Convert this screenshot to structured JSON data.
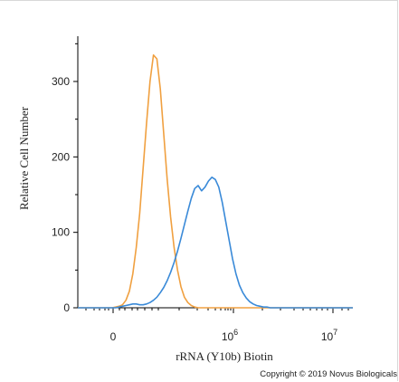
{
  "chart_data": {
    "type": "line",
    "xlabel": "rRNA (Y10b) Biotin",
    "ylabel": "Relative Cell Number",
    "ylim": [
      0,
      360
    ],
    "y_ticks": [
      0,
      100,
      200,
      300
    ],
    "y_tick_labels": [
      "0",
      "100",
      "200",
      "300"
    ],
    "x_scale": "biexponential",
    "x_ticks": [
      {
        "label": "0",
        "sup": ""
      },
      {
        "label": "10",
        "sup": "6"
      },
      {
        "label": "10",
        "sup": "7"
      }
    ],
    "grid": false,
    "legend": "none",
    "series": [
      {
        "color": "#f0a040",
        "y": [
          0,
          0,
          0,
          0,
          0,
          0,
          0,
          0,
          0,
          0,
          0,
          1,
          2,
          4,
          10,
          22,
          45,
          80,
          125,
          185,
          245,
          300,
          335,
          330,
          290,
          230,
          170,
          120,
          80,
          50,
          28,
          14,
          7,
          3,
          1,
          0,
          0,
          0,
          0,
          0,
          0,
          0,
          0,
          0,
          0,
          0,
          0,
          0,
          0,
          0,
          0,
          0,
          0,
          0,
          0,
          0,
          0,
          0,
          0,
          0,
          0,
          0,
          0,
          0,
          0,
          0,
          0,
          0,
          0,
          0,
          0,
          0,
          0,
          0,
          0,
          0,
          0,
          0,
          0,
          0,
          0
        ]
      },
      {
        "color": "#3a8ad8",
        "y": [
          0,
          0,
          0,
          0,
          0,
          0,
          0,
          0,
          0,
          0,
          0,
          0,
          1,
          2,
          3,
          4,
          5,
          5,
          4,
          4,
          5,
          7,
          10,
          14,
          20,
          27,
          36,
          47,
          60,
          75,
          92,
          110,
          128,
          145,
          158,
          162,
          155,
          160,
          168,
          173,
          170,
          160,
          140,
          115,
          90,
          65,
          45,
          30,
          20,
          13,
          8,
          5,
          3,
          2,
          1,
          1,
          0,
          0,
          0,
          0,
          0,
          0,
          0,
          0,
          0,
          0,
          0,
          0,
          0,
          0,
          0,
          0,
          0,
          0,
          0,
          0,
          0,
          0,
          0,
          0,
          0
        ]
      }
    ]
  },
  "footer": {
    "copyright": "Copyright © 2019 Novus Biologicals"
  }
}
